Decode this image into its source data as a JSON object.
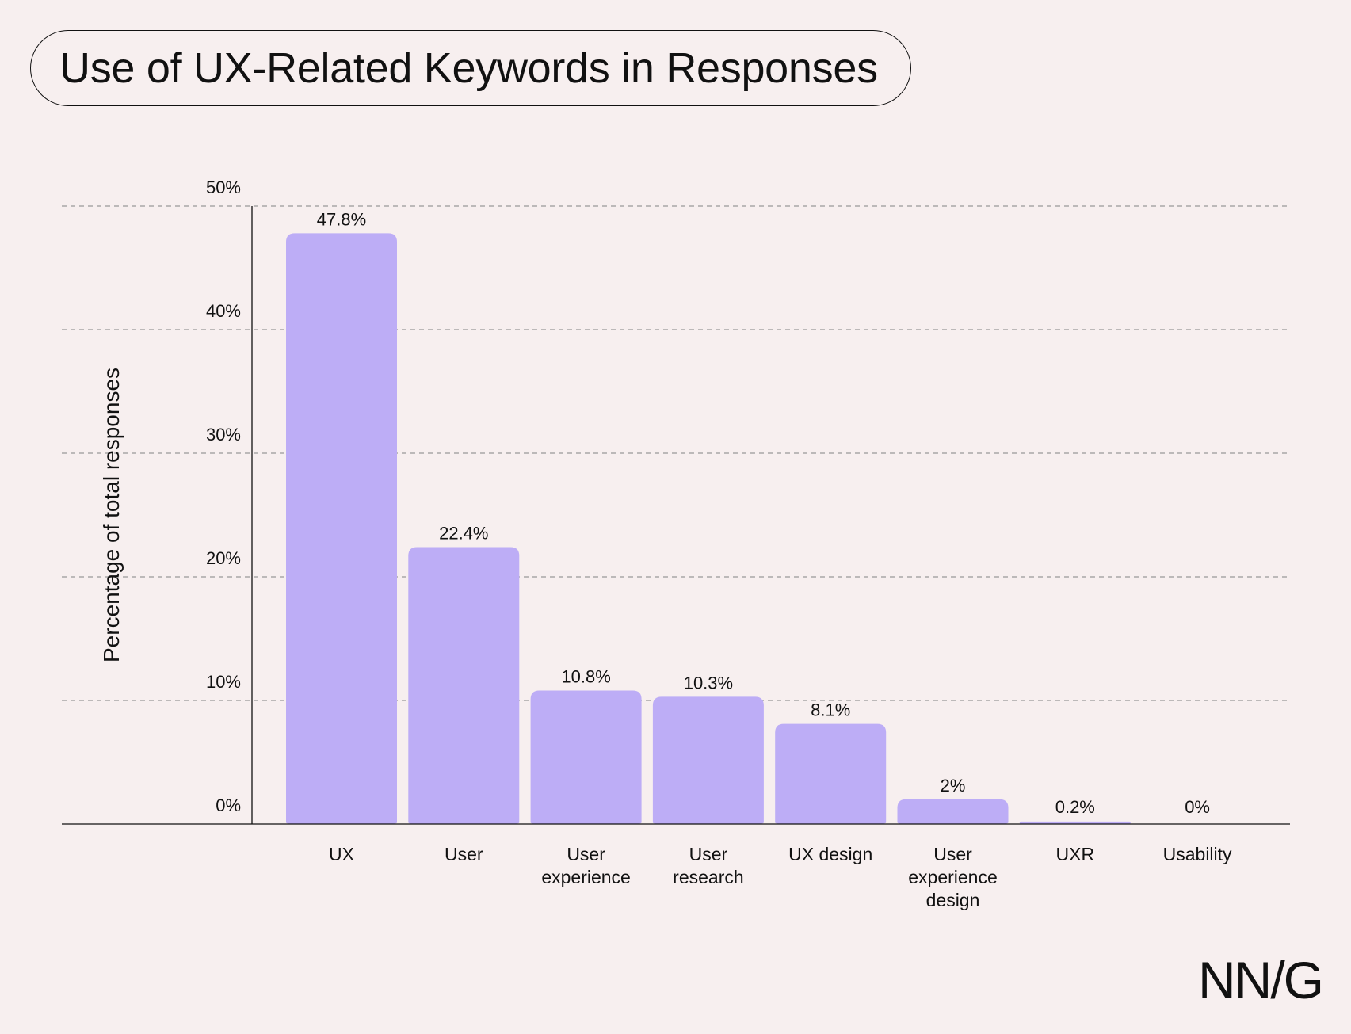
{
  "title": "Use of UX-Related Keywords in Responses",
  "logo_text": "NN/G",
  "colors": {
    "background": "#f7efef",
    "bar": "#bdadf6",
    "gridline": "#999999",
    "axis": "#111111"
  },
  "chart_data": {
    "type": "bar",
    "ylabel": "Percentage of total responses",
    "xlabel": "",
    "ylim": [
      0,
      50
    ],
    "yticks": [
      0,
      10,
      20,
      30,
      40,
      50
    ],
    "ytick_labels": [
      "0%",
      "10%",
      "20%",
      "30%",
      "40%",
      "50%"
    ],
    "grid": "horizontal-dashed",
    "categories": [
      [
        "UX"
      ],
      [
        "User"
      ],
      [
        "User",
        "experience"
      ],
      [
        "User",
        "research"
      ],
      [
        "UX design"
      ],
      [
        "User",
        "experience",
        "design"
      ],
      [
        "UXR"
      ],
      [
        "Usability"
      ]
    ],
    "values": [
      47.8,
      22.4,
      10.8,
      10.3,
      8.1,
      2,
      0.2,
      0
    ],
    "value_labels": [
      "47.8%",
      "22.4%",
      "10.8%",
      "10.3%",
      "8.1%",
      "2%",
      "0.2%",
      "0%"
    ]
  }
}
